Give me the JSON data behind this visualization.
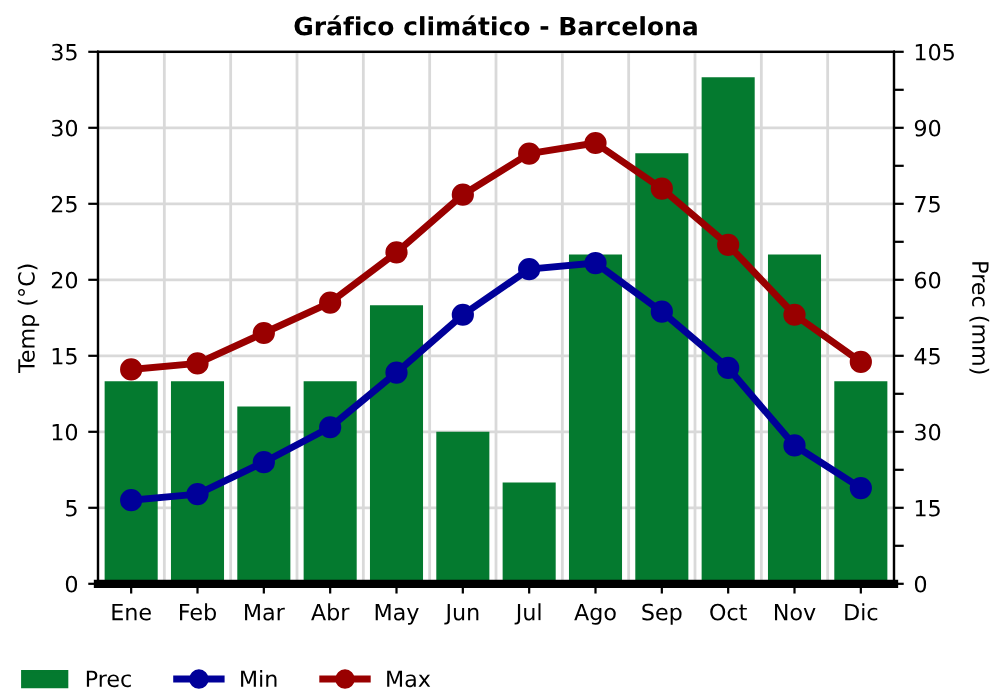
{
  "chart_data": {
    "type": "bar",
    "title": "Gráfico climático - Barcelona",
    "ylabel": "Temp (°C)",
    "y2label": "Prec (mm)",
    "categories": [
      "Ene",
      "Feb",
      "Mar",
      "Abr",
      "May",
      "Jun",
      "Jul",
      "Ago",
      "Sep",
      "Oct",
      "Nov",
      "Dic"
    ],
    "series": [
      {
        "name": "Prec",
        "axis": "y2",
        "color": "#047a2f",
        "values": [
          40,
          40,
          35,
          40,
          55,
          30,
          20,
          65,
          85,
          100,
          65,
          40
        ]
      },
      {
        "name": "Min",
        "type": "line",
        "axis": "y",
        "color": "#000099",
        "values": [
          5.5,
          5.9,
          8.0,
          10.3,
          13.9,
          17.7,
          20.7,
          21.1,
          17.9,
          14.2,
          9.1,
          6.3
        ]
      },
      {
        "name": "Max",
        "type": "line",
        "axis": "y",
        "color": "#990000",
        "values": [
          14.1,
          14.5,
          16.5,
          18.5,
          21.8,
          25.6,
          28.3,
          29.0,
          26.0,
          22.3,
          17.7,
          14.6
        ]
      }
    ],
    "ylim": [
      0,
      35
    ],
    "yticks": [
      0,
      5,
      10,
      15,
      20,
      25,
      30,
      35
    ],
    "y2lim": [
      0,
      105
    ],
    "y2ticks": [
      0,
      {
        "value": 7.5,
        "label": null
      },
      15,
      {
        "value": 22.5,
        "label": null
      },
      30,
      {
        "value": 37.5,
        "label": null
      },
      45,
      {
        "value": 52.5,
        "label": null
      },
      60,
      {
        "value": 67.5,
        "label": null
      },
      75,
      {
        "value": 82.5,
        "label": null
      },
      90,
      {
        "value": 97.5,
        "label": null
      },
      105
    ],
    "grid": true,
    "legend": "bottom",
    "marker": "circle",
    "line_style": "solid"
  }
}
